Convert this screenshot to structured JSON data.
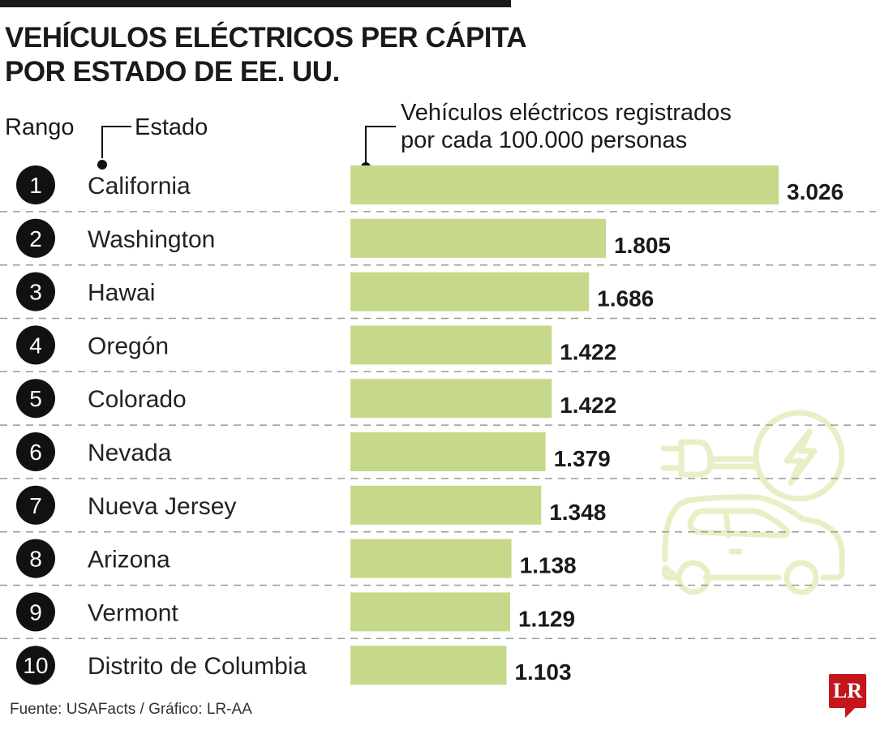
{
  "title_line1": "VEHÍCULOS ELÉCTRICOS PER CÁPITA",
  "title_line2": "POR ESTADO DE EE. UU.",
  "headers": {
    "rank": "Rango",
    "state": "Estado",
    "value_line1": "Vehículos eléctricos registrados",
    "value_line2": "por cada 100.000 personas"
  },
  "footer": "Fuente: USAFacts / Gráfico: LR-AA",
  "logo_text": "LR",
  "colors": {
    "bar": "#c6d98a",
    "icon": "#e8efc6",
    "badge": "#111111",
    "logo": "#c4161c"
  },
  "decoration_icon": "electric-car-plug-icon",
  "chart_data": {
    "type": "bar",
    "orientation": "horizontal",
    "categories": [
      "California",
      "Washington",
      "Hawai",
      "Oregón",
      "Colorado",
      "Nevada",
      "Nueva Jersey",
      "Arizona",
      "Vermont",
      "Distrito de Columbia"
    ],
    "ranks": [
      "1",
      "2",
      "3",
      "4",
      "5",
      "6",
      "7",
      "8",
      "9",
      "10"
    ],
    "values": [
      3026,
      1805,
      1686,
      1422,
      1422,
      1379,
      1348,
      1138,
      1129,
      1103
    ],
    "value_labels": [
      "3.026",
      "1.805",
      "1.686",
      "1.422",
      "1.422",
      "1.379",
      "1.348",
      "1.138",
      "1.129",
      "1.103"
    ],
    "xlim": [
      0,
      3026
    ],
    "grid": false
  }
}
